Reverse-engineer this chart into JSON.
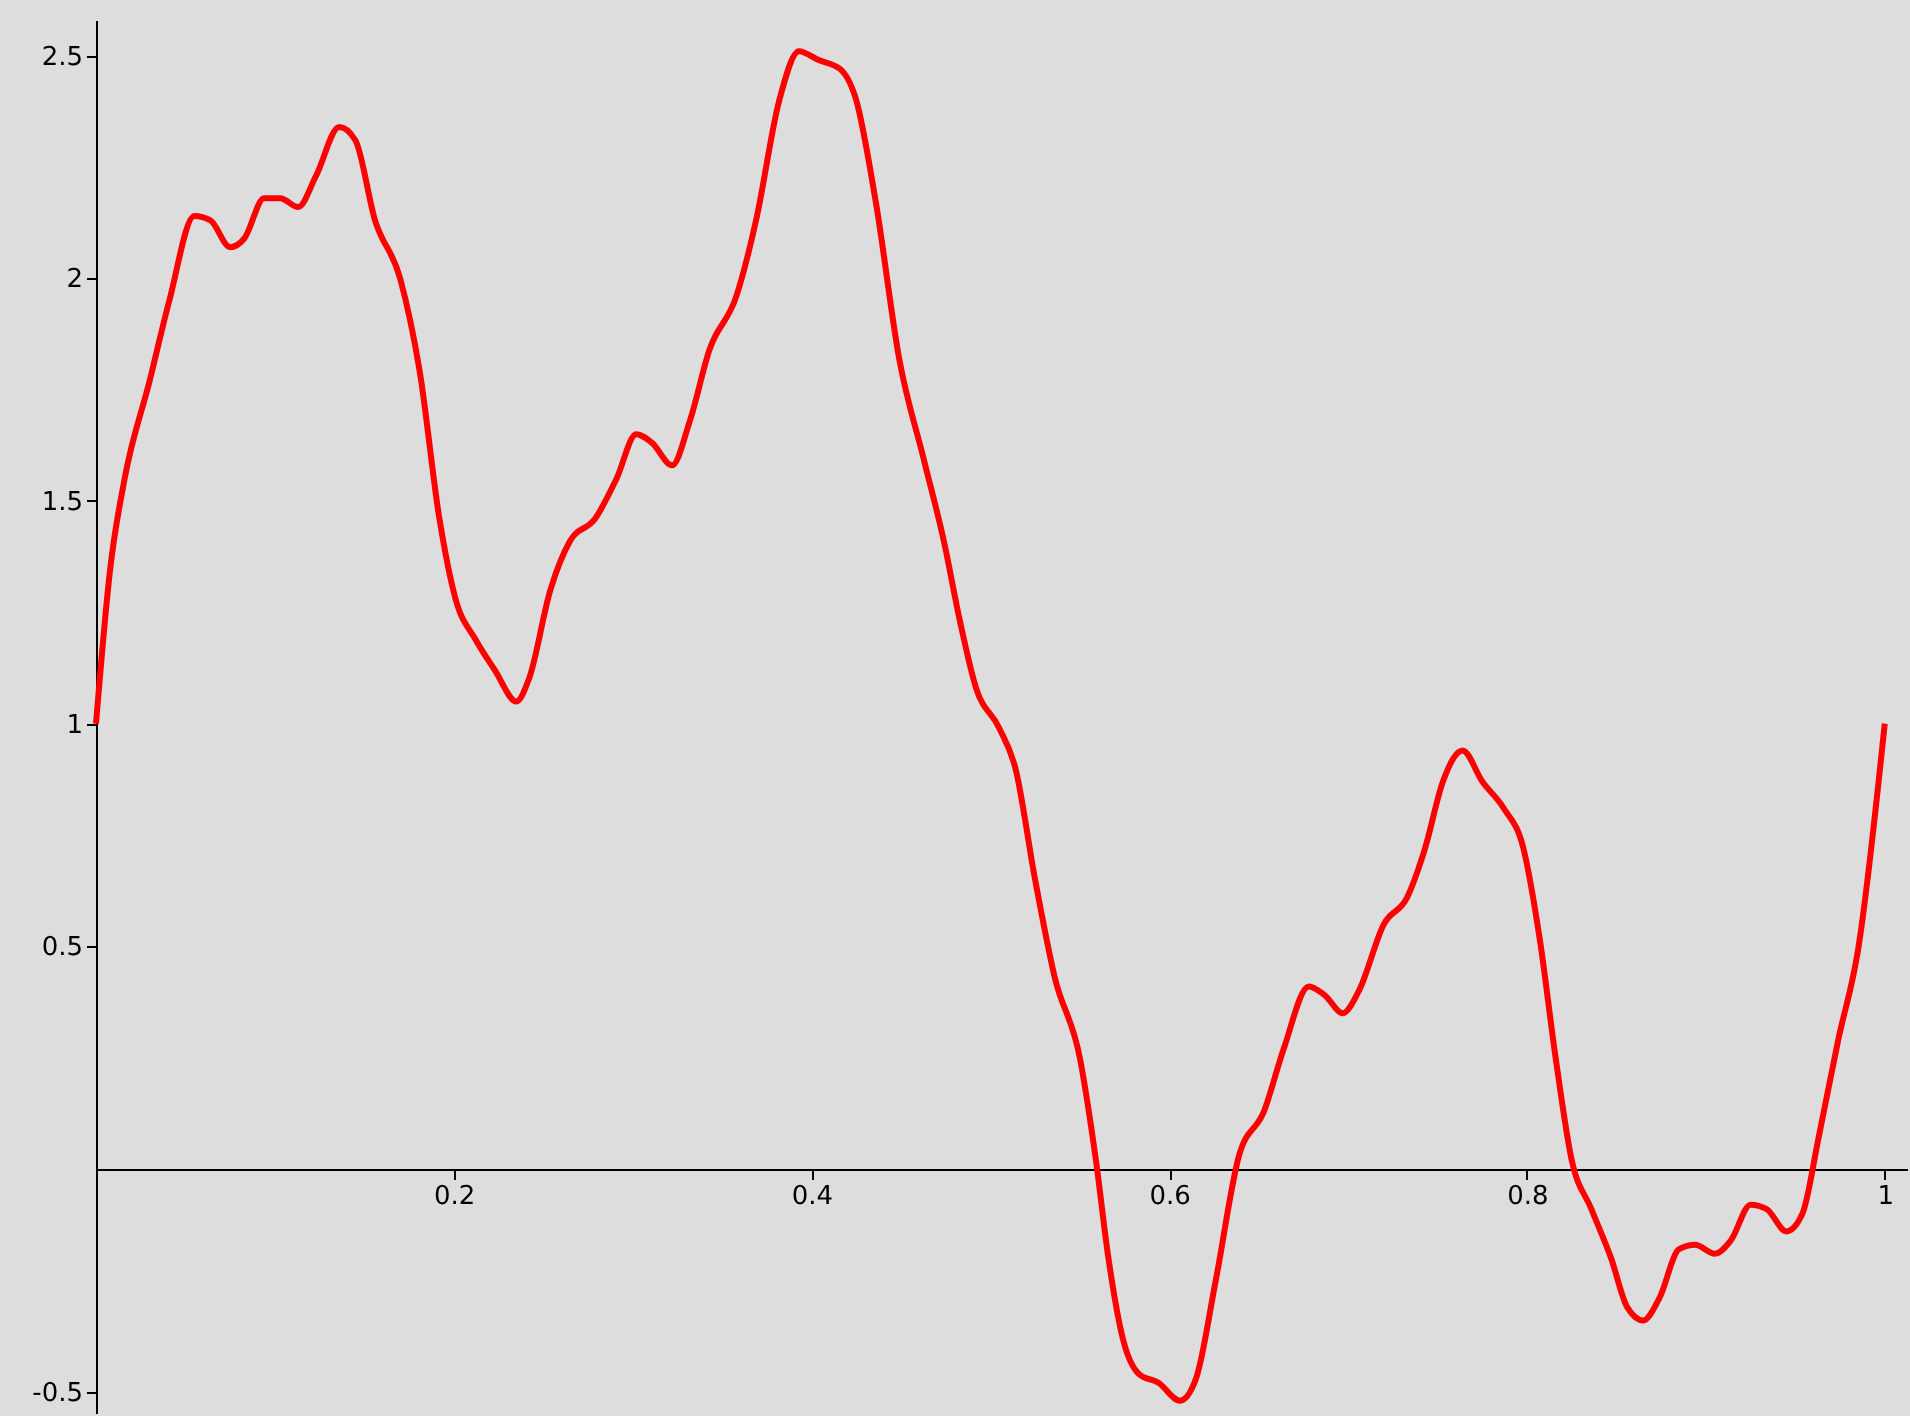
{
  "chart_data": {
    "type": "line",
    "x": [
      0,
      0.008,
      0.016,
      0.03,
      0.041,
      0.055,
      0.064,
      0.075,
      0.083,
      0.094,
      0.103,
      0.113,
      0.123,
      0.136,
      0.145,
      0.156,
      0.17,
      0.181,
      0.192,
      0.201,
      0.212,
      0.223,
      0.235,
      0.242,
      0.254,
      0.265,
      0.279,
      0.291,
      0.302,
      0.311,
      0.322,
      0.332,
      0.343,
      0.358,
      0.369,
      0.382,
      0.393,
      0.404,
      0.416,
      0.425,
      0.436,
      0.449,
      0.463,
      0.474,
      0.483,
      0.492,
      0.505,
      0.514,
      0.525,
      0.536,
      0.55,
      0.559,
      0.566,
      0.574,
      0.583,
      0.594,
      0.606,
      0.615,
      0.626,
      0.639,
      0.653,
      0.664,
      0.678,
      0.687,
      0.697,
      0.706,
      0.72,
      0.733,
      0.743,
      0.753,
      0.764,
      0.775,
      0.787,
      0.798,
      0.807,
      0.816,
      0.825,
      0.836,
      0.847,
      0.856,
      0.865,
      0.874,
      0.885,
      0.894,
      0.905,
      0.914,
      0.925,
      0.934,
      0.945,
      0.954,
      0.963,
      0.974,
      0.985,
      1.0
    ],
    "series": [
      {
        "color": "#ff0000",
        "values": [
          1.0,
          1.35,
          1.55,
          1.77,
          1.95,
          2.14,
          2.13,
          2.07,
          2.09,
          2.18,
          2.18,
          2.16,
          2.23,
          2.34,
          2.31,
          2.13,
          2.0,
          1.79,
          1.46,
          1.28,
          1.19,
          1.12,
          1.05,
          1.1,
          1.3,
          1.41,
          1.46,
          1.55,
          1.65,
          1.63,
          1.58,
          1.68,
          1.84,
          1.96,
          2.13,
          2.4,
          2.51,
          2.49,
          2.47,
          2.4,
          2.17,
          1.82,
          1.59,
          1.41,
          1.23,
          1.08,
          0.99,
          0.9,
          0.65,
          0.43,
          0.25,
          0.02,
          -0.2,
          -0.38,
          -0.46,
          -0.48,
          -0.52,
          -0.47,
          -0.25,
          0.03,
          0.13,
          0.27,
          0.41,
          0.39,
          0.35,
          0.4,
          0.55,
          0.61,
          0.72,
          0.87,
          0.94,
          0.87,
          0.81,
          0.72,
          0.52,
          0.25,
          0.02,
          -0.09,
          -0.2,
          -0.31,
          -0.34,
          -0.29,
          -0.18,
          -0.17,
          -0.19,
          -0.16,
          -0.08,
          -0.09,
          -0.14,
          -0.1,
          0.07,
          0.29,
          0.49,
          1.0
        ]
      }
    ],
    "xlim": [
      0,
      1.013
    ],
    "xticks": [
      0.2,
      0.4,
      0.6,
      0.8,
      1
    ],
    "ylim": [
      -0.55,
      2.58
    ],
    "yticks": [
      -0.5,
      0.5,
      1,
      1.5,
      2,
      2.5
    ],
    "marker": "none",
    "line_style": "solid"
  }
}
